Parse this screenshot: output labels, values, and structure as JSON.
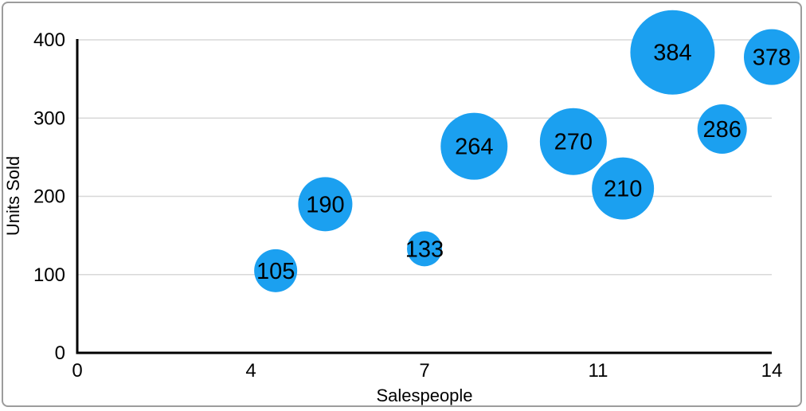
{
  "chart_data": {
    "type": "scatter",
    "subtype": "bubble",
    "title": "",
    "xlabel": "Salespeople",
    "ylabel": "Units Sold",
    "xlim": [
      0,
      14
    ],
    "ylim": [
      0,
      400
    ],
    "grid": "horizontal-only",
    "legend": "none",
    "x_ticks": [
      {
        "value": 0,
        "label": "0"
      },
      {
        "value": 3.5,
        "label": "4"
      },
      {
        "value": 7,
        "label": "7"
      },
      {
        "value": 10.5,
        "label": "11"
      },
      {
        "value": 14,
        "label": "14"
      }
    ],
    "y_ticks": [
      {
        "value": 0,
        "label": "0"
      },
      {
        "value": 100,
        "label": "100"
      },
      {
        "value": 200,
        "label": "200"
      },
      {
        "value": 300,
        "label": "300"
      },
      {
        "value": 400,
        "label": "400"
      }
    ],
    "points": [
      {
        "x": 4,
        "y": 105,
        "label": "105",
        "radius_px": 27
      },
      {
        "x": 5,
        "y": 190,
        "label": "190",
        "radius_px": 34
      },
      {
        "x": 7,
        "y": 133,
        "label": "133",
        "radius_px": 22
      },
      {
        "x": 8,
        "y": 264,
        "label": "264",
        "radius_px": 42
      },
      {
        "x": 10,
        "y": 270,
        "label": "270",
        "radius_px": 42
      },
      {
        "x": 11,
        "y": 210,
        "label": "210",
        "radius_px": 39
      },
      {
        "x": 12,
        "y": 384,
        "label": "384",
        "radius_px": 53
      },
      {
        "x": 13,
        "y": 286,
        "label": "286",
        "radius_px": 31
      },
      {
        "x": 14,
        "y": 378,
        "label": "378",
        "radius_px": 35
      }
    ],
    "colors": {
      "bubble": "#1BA0F0",
      "bubble_label": "#000000",
      "axis": "#000000",
      "gridline": "#d8d8d8",
      "tick_label": "#000000",
      "frame_border": "#9c9c9c",
      "background": "#ffffff"
    }
  }
}
